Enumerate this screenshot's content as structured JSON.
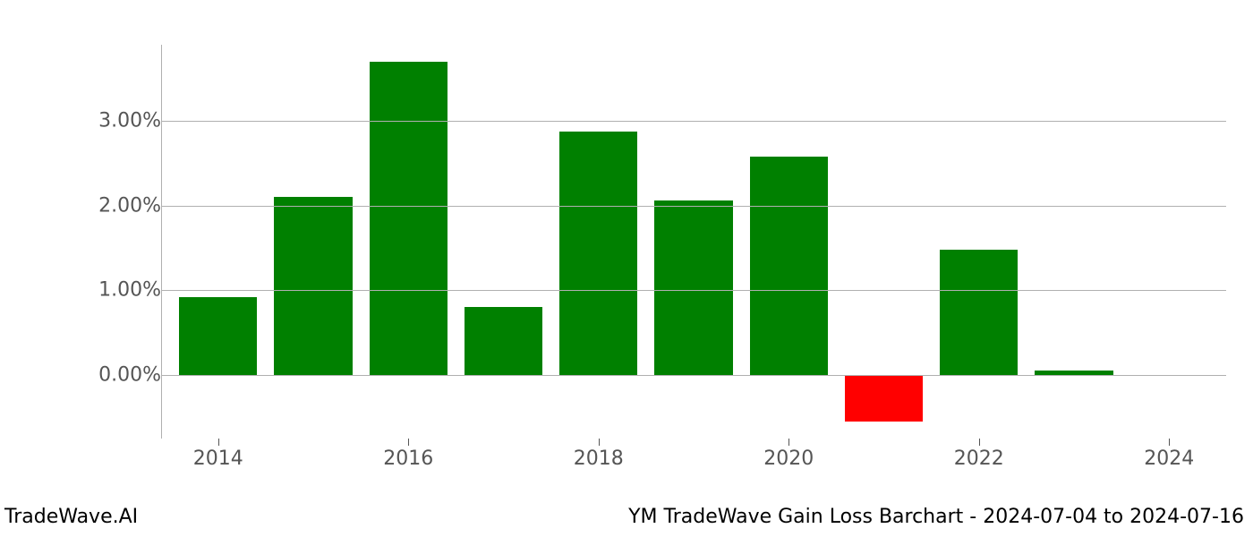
{
  "chart": {
    "type": "bar",
    "years": [
      2014,
      2015,
      2016,
      2017,
      2018,
      2019,
      2020,
      2021,
      2022,
      2023,
      2024
    ],
    "values": [
      0.92,
      2.1,
      3.7,
      0.8,
      2.88,
      2.06,
      2.58,
      -0.55,
      1.48,
      0.05,
      0.0
    ],
    "positive_color": "#008000",
    "negative_color": "#ff0000",
    "background_color": "#ffffff",
    "grid_color": "#b0b0b0",
    "axis_color": "#b0b0b0",
    "tick_color": "#555555",
    "label_color": "#555555",
    "y_ticks": [
      0,
      1,
      2,
      3
    ],
    "y_tick_labels": [
      "0.00%",
      "1.00%",
      "2.00%",
      "3.00%"
    ],
    "y_min": -0.75,
    "y_max": 3.9,
    "x_tick_years": [
      2014,
      2016,
      2018,
      2020,
      2022,
      2024
    ],
    "x_tick_labels": [
      "2014",
      "2016",
      "2018",
      "2020",
      "2022",
      "2024"
    ],
    "x_min": 2013.4,
    "x_max": 2024.6,
    "bar_width_years": 0.82,
    "label_fontsize": 22,
    "footer_fontsize": 22
  },
  "footer": {
    "left": "TradeWave.AI",
    "right": "YM TradeWave Gain Loss Barchart - 2024-07-04 to 2024-07-16"
  }
}
